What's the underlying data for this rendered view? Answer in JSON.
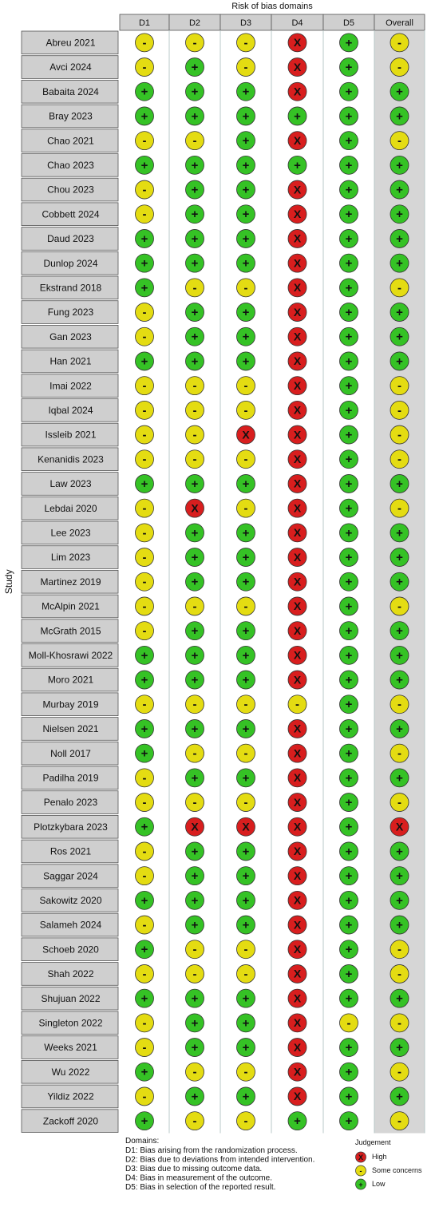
{
  "header": {
    "title": "Risk of bias domains",
    "columns": [
      "D1",
      "D2",
      "D3",
      "D4",
      "D5",
      "Overall"
    ]
  },
  "y_label": "Study",
  "rows": [
    {
      "study": "Abreu 2021",
      "judgements": [
        "-",
        "-",
        "-",
        "X",
        "+",
        "-"
      ]
    },
    {
      "study": "Avci 2024",
      "judgements": [
        "-",
        "+",
        "-",
        "X",
        "+",
        "-"
      ]
    },
    {
      "study": "Babaita 2024",
      "judgements": [
        "+",
        "+",
        "+",
        "X",
        "+",
        "+"
      ]
    },
    {
      "study": "Bray 2023",
      "judgements": [
        "+",
        "+",
        "+",
        "+",
        "+",
        "+"
      ]
    },
    {
      "study": "Chao 2021",
      "judgements": [
        "-",
        "-",
        "+",
        "X",
        "+",
        "-"
      ]
    },
    {
      "study": "Chao 2023",
      "judgements": [
        "+",
        "+",
        "+",
        "+",
        "+",
        "+"
      ]
    },
    {
      "study": "Chou 2023",
      "judgements": [
        "-",
        "+",
        "+",
        "X",
        "+",
        "+"
      ]
    },
    {
      "study": "Cobbett 2024",
      "judgements": [
        "-",
        "+",
        "+",
        "X",
        "+",
        "+"
      ]
    },
    {
      "study": "Daud 2023",
      "judgements": [
        "+",
        "+",
        "+",
        "X",
        "+",
        "+"
      ]
    },
    {
      "study": "Dunlop 2024",
      "judgements": [
        "+",
        "+",
        "+",
        "X",
        "+",
        "+"
      ]
    },
    {
      "study": "Ekstrand 2018",
      "judgements": [
        "+",
        "-",
        "-",
        "X",
        "+",
        "-"
      ]
    },
    {
      "study": "Fung 2023",
      "judgements": [
        "-",
        "+",
        "+",
        "X",
        "+",
        "+"
      ]
    },
    {
      "study": "Gan 2023",
      "judgements": [
        "-",
        "+",
        "+",
        "X",
        "+",
        "+"
      ]
    },
    {
      "study": "Han 2021",
      "judgements": [
        "+",
        "+",
        "+",
        "X",
        "+",
        "+"
      ]
    },
    {
      "study": "Imai 2022",
      "judgements": [
        "-",
        "-",
        "-",
        "X",
        "+",
        "-"
      ]
    },
    {
      "study": "Iqbal 2024",
      "judgements": [
        "-",
        "-",
        "-",
        "X",
        "+",
        "-"
      ]
    },
    {
      "study": "Issleib 2021",
      "judgements": [
        "-",
        "-",
        "X",
        "X",
        "+",
        "-"
      ]
    },
    {
      "study": "Kenanidis 2023",
      "judgements": [
        "-",
        "-",
        "-",
        "X",
        "+",
        "-"
      ]
    },
    {
      "study": "Law 2023",
      "judgements": [
        "+",
        "+",
        "+",
        "X",
        "+",
        "+"
      ]
    },
    {
      "study": "Lebdai 2020",
      "judgements": [
        "-",
        "X",
        "-",
        "X",
        "+",
        "-"
      ]
    },
    {
      "study": "Lee 2023",
      "judgements": [
        "-",
        "+",
        "+",
        "X",
        "+",
        "+"
      ]
    },
    {
      "study": "Lim 2023",
      "judgements": [
        "-",
        "+",
        "+",
        "X",
        "+",
        "+"
      ]
    },
    {
      "study": "Martinez 2019",
      "judgements": [
        "-",
        "+",
        "+",
        "X",
        "+",
        "+"
      ]
    },
    {
      "study": "McAlpin 2021",
      "judgements": [
        "-",
        "-",
        "-",
        "X",
        "+",
        "-"
      ]
    },
    {
      "study": "McGrath 2015",
      "judgements": [
        "-",
        "+",
        "+",
        "X",
        "+",
        "+"
      ]
    },
    {
      "study": "Moll-Khosrawi 2022",
      "judgements": [
        "+",
        "+",
        "+",
        "X",
        "+",
        "+"
      ]
    },
    {
      "study": "Moro 2021",
      "judgements": [
        "+",
        "+",
        "+",
        "X",
        "+",
        "+"
      ]
    },
    {
      "study": "Murbay 2019",
      "judgements": [
        "-",
        "-",
        "-",
        "-",
        "+",
        "-"
      ]
    },
    {
      "study": "Nielsen 2021",
      "judgements": [
        "+",
        "+",
        "+",
        "X",
        "+",
        "+"
      ]
    },
    {
      "study": "Noll 2017",
      "judgements": [
        "+",
        "-",
        "-",
        "X",
        "+",
        "-"
      ]
    },
    {
      "study": "Padilha 2019",
      "judgements": [
        "-",
        "+",
        "+",
        "X",
        "+",
        "+"
      ]
    },
    {
      "study": "Penalo 2023",
      "judgements": [
        "-",
        "-",
        "-",
        "X",
        "+",
        "-"
      ]
    },
    {
      "study": "Plotzkybara 2023",
      "judgements": [
        "+",
        "X",
        "X",
        "X",
        "+",
        "X"
      ]
    },
    {
      "study": "Ros 2021",
      "judgements": [
        "-",
        "+",
        "+",
        "X",
        "+",
        "+"
      ]
    },
    {
      "study": "Saggar 2024",
      "judgements": [
        "-",
        "+",
        "+",
        "X",
        "+",
        "+"
      ]
    },
    {
      "study": "Sakowitz 2020",
      "judgements": [
        "+",
        "+",
        "+",
        "X",
        "+",
        "+"
      ]
    },
    {
      "study": "Salameh 2024",
      "judgements": [
        "-",
        "+",
        "+",
        "X",
        "+",
        "+"
      ]
    },
    {
      "study": "Schoeb 2020",
      "judgements": [
        "+",
        "-",
        "-",
        "X",
        "+",
        "-"
      ]
    },
    {
      "study": "Shah 2022",
      "judgements": [
        "-",
        "-",
        "-",
        "X",
        "+",
        "-"
      ]
    },
    {
      "study": "Shujuan 2022",
      "judgements": [
        "+",
        "+",
        "+",
        "X",
        "+",
        "+"
      ]
    },
    {
      "study": "Singleton 2022",
      "judgements": [
        "-",
        "+",
        "+",
        "X",
        "-",
        "-"
      ]
    },
    {
      "study": "Weeks 2021",
      "judgements": [
        "-",
        "+",
        "+",
        "X",
        "+",
        "+"
      ]
    },
    {
      "study": "Wu 2022",
      "judgements": [
        "+",
        "-",
        "-",
        "X",
        "+",
        "-"
      ]
    },
    {
      "study": "Yildiz 2022",
      "judgements": [
        "-",
        "+",
        "+",
        "X",
        "+",
        "+"
      ]
    },
    {
      "study": "Zackoff 2020",
      "judgements": [
        "+",
        "-",
        "-",
        "+",
        "+",
        "-"
      ]
    }
  ],
  "domains_title": "Domains:",
  "domains": [
    "D1: Bias arising from the randomization process.",
    "D2: Bias due to deviations from intended intervention.",
    "D3: Bias due to missing outcome data.",
    "D4: Bias in measurement of the outcome.",
    "D5: Bias in selection of the reported result."
  ],
  "legend": {
    "title": "Judgement",
    "items": [
      {
        "symbol": "X",
        "label": "High",
        "color": "#d81e1e"
      },
      {
        "symbol": "-",
        "label": "Some concerns",
        "color": "#e4dc12"
      },
      {
        "symbol": "+",
        "label": "Low",
        "color": "#35c225"
      }
    ]
  }
}
